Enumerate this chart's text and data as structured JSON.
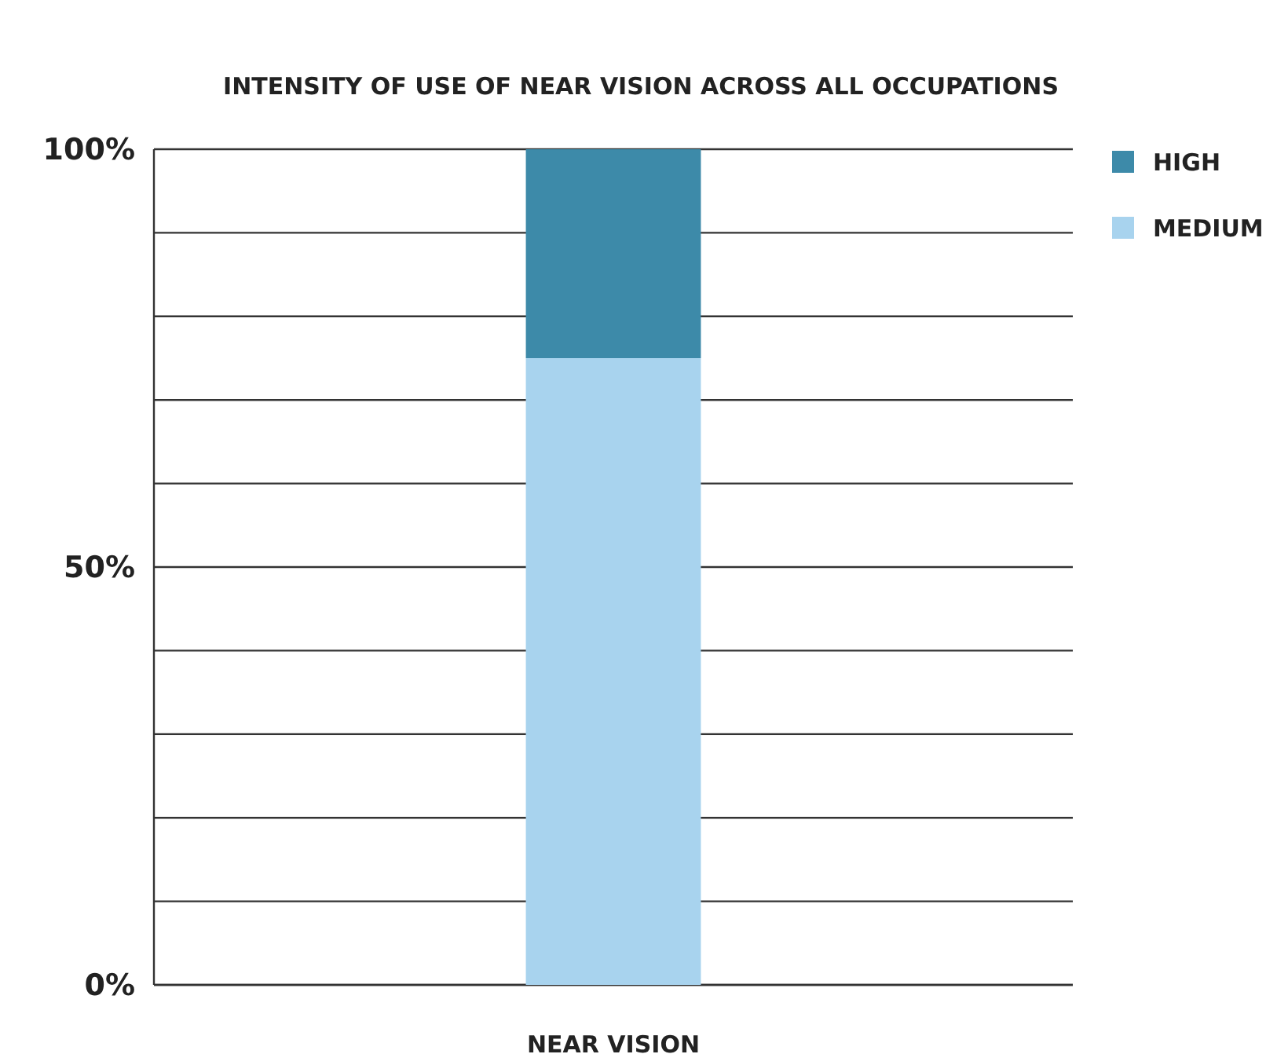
{
  "chart_data": {
    "type": "bar",
    "title": "INTENSITY OF USE OF NEAR VISION ACROSS ALL OCCUPATIONS",
    "categories": [
      "NEAR VISION"
    ],
    "stacked": true,
    "series": [
      {
        "name": "MEDIUM",
        "color": "#a8d3ee",
        "values": [
          75
        ]
      },
      {
        "name": "HIGH",
        "color": "#3d8aa9",
        "values": [
          25
        ]
      }
    ],
    "ylim": [
      0,
      100
    ],
    "yticks": [
      {
        "value": 0,
        "label": "0%"
      },
      {
        "value": 10,
        "label": null
      },
      {
        "value": 20,
        "label": null
      },
      {
        "value": 30,
        "label": null
      },
      {
        "value": 40,
        "label": null
      },
      {
        "value": 50,
        "label": "50%"
      },
      {
        "value": 60,
        "label": null
      },
      {
        "value": 70,
        "label": null
      },
      {
        "value": 80,
        "label": null
      },
      {
        "value": 90,
        "label": null
      },
      {
        "value": 100,
        "label": "100%"
      }
    ],
    "grid": "y",
    "legend": "top right"
  }
}
